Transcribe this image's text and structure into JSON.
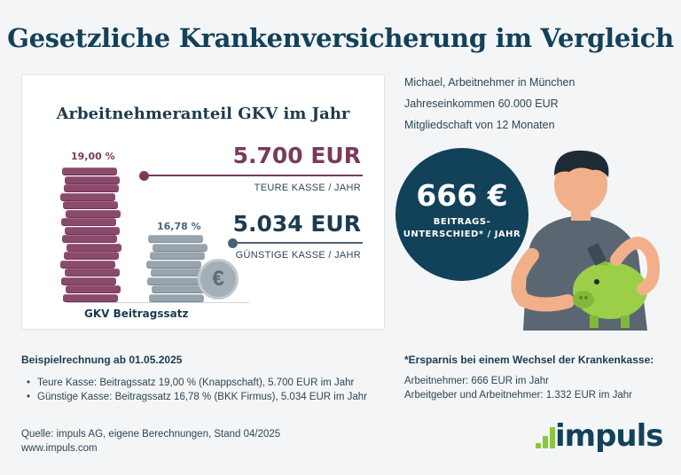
{
  "title": "Gesetzliche Krankenversicherung im Vergleich",
  "card": {
    "title": "Arbeitnehmeranteil GKV im Jahr",
    "expensive": {
      "percent": "19,00 %",
      "amount": "5.700 EUR",
      "label": "TEURE KASSE / JAHR"
    },
    "cheap": {
      "percent": "16,78 %",
      "amount": "5.034 EUR",
      "label": "GÜNSTIGE KASSE / JAHR"
    },
    "stack_label": "GKV Beitragssatz",
    "euro_symbol": "€"
  },
  "profile": {
    "line1": "Michael, Arbeitnehmer in München",
    "line2": "Jahreseinkommen 60.000 EUR",
    "line3": "Mitgliedschaft von 12 Monaten"
  },
  "difference": {
    "value": "666 €",
    "label_line1": "BEITRAGS-",
    "label_line2": "UNTERSCHIED* / JAHR"
  },
  "example": {
    "heading": "Beispielrechnung ab 01.05.2025",
    "items": [
      "Teure Kasse: Beitragssatz 19,00 % (Knappschaft), 5.700 EUR im Jahr",
      "Günstige Kasse: Beitragssatz 16,78 % (BKK Firmus), 5.034 EUR im Jahr"
    ]
  },
  "savings": {
    "heading": "*Ersparnis bei einem Wechsel der Krankenkasse:",
    "line1": "Arbeitnehmer: 666 EUR im Jahr",
    "line2": "Arbeitgeber und Arbeitnehmer: 1.332 EUR im Jahr"
  },
  "source": {
    "line1": "Quelle: impuls AG, eigene Berechnungen, Stand 04/2025",
    "line2": "www.impuls.com"
  },
  "logo": {
    "text": "impuls"
  },
  "colors": {
    "purple": "#7a3a5c",
    "slate": "#4a6373",
    "navy": "#12415a",
    "green": "#8cc63f"
  }
}
